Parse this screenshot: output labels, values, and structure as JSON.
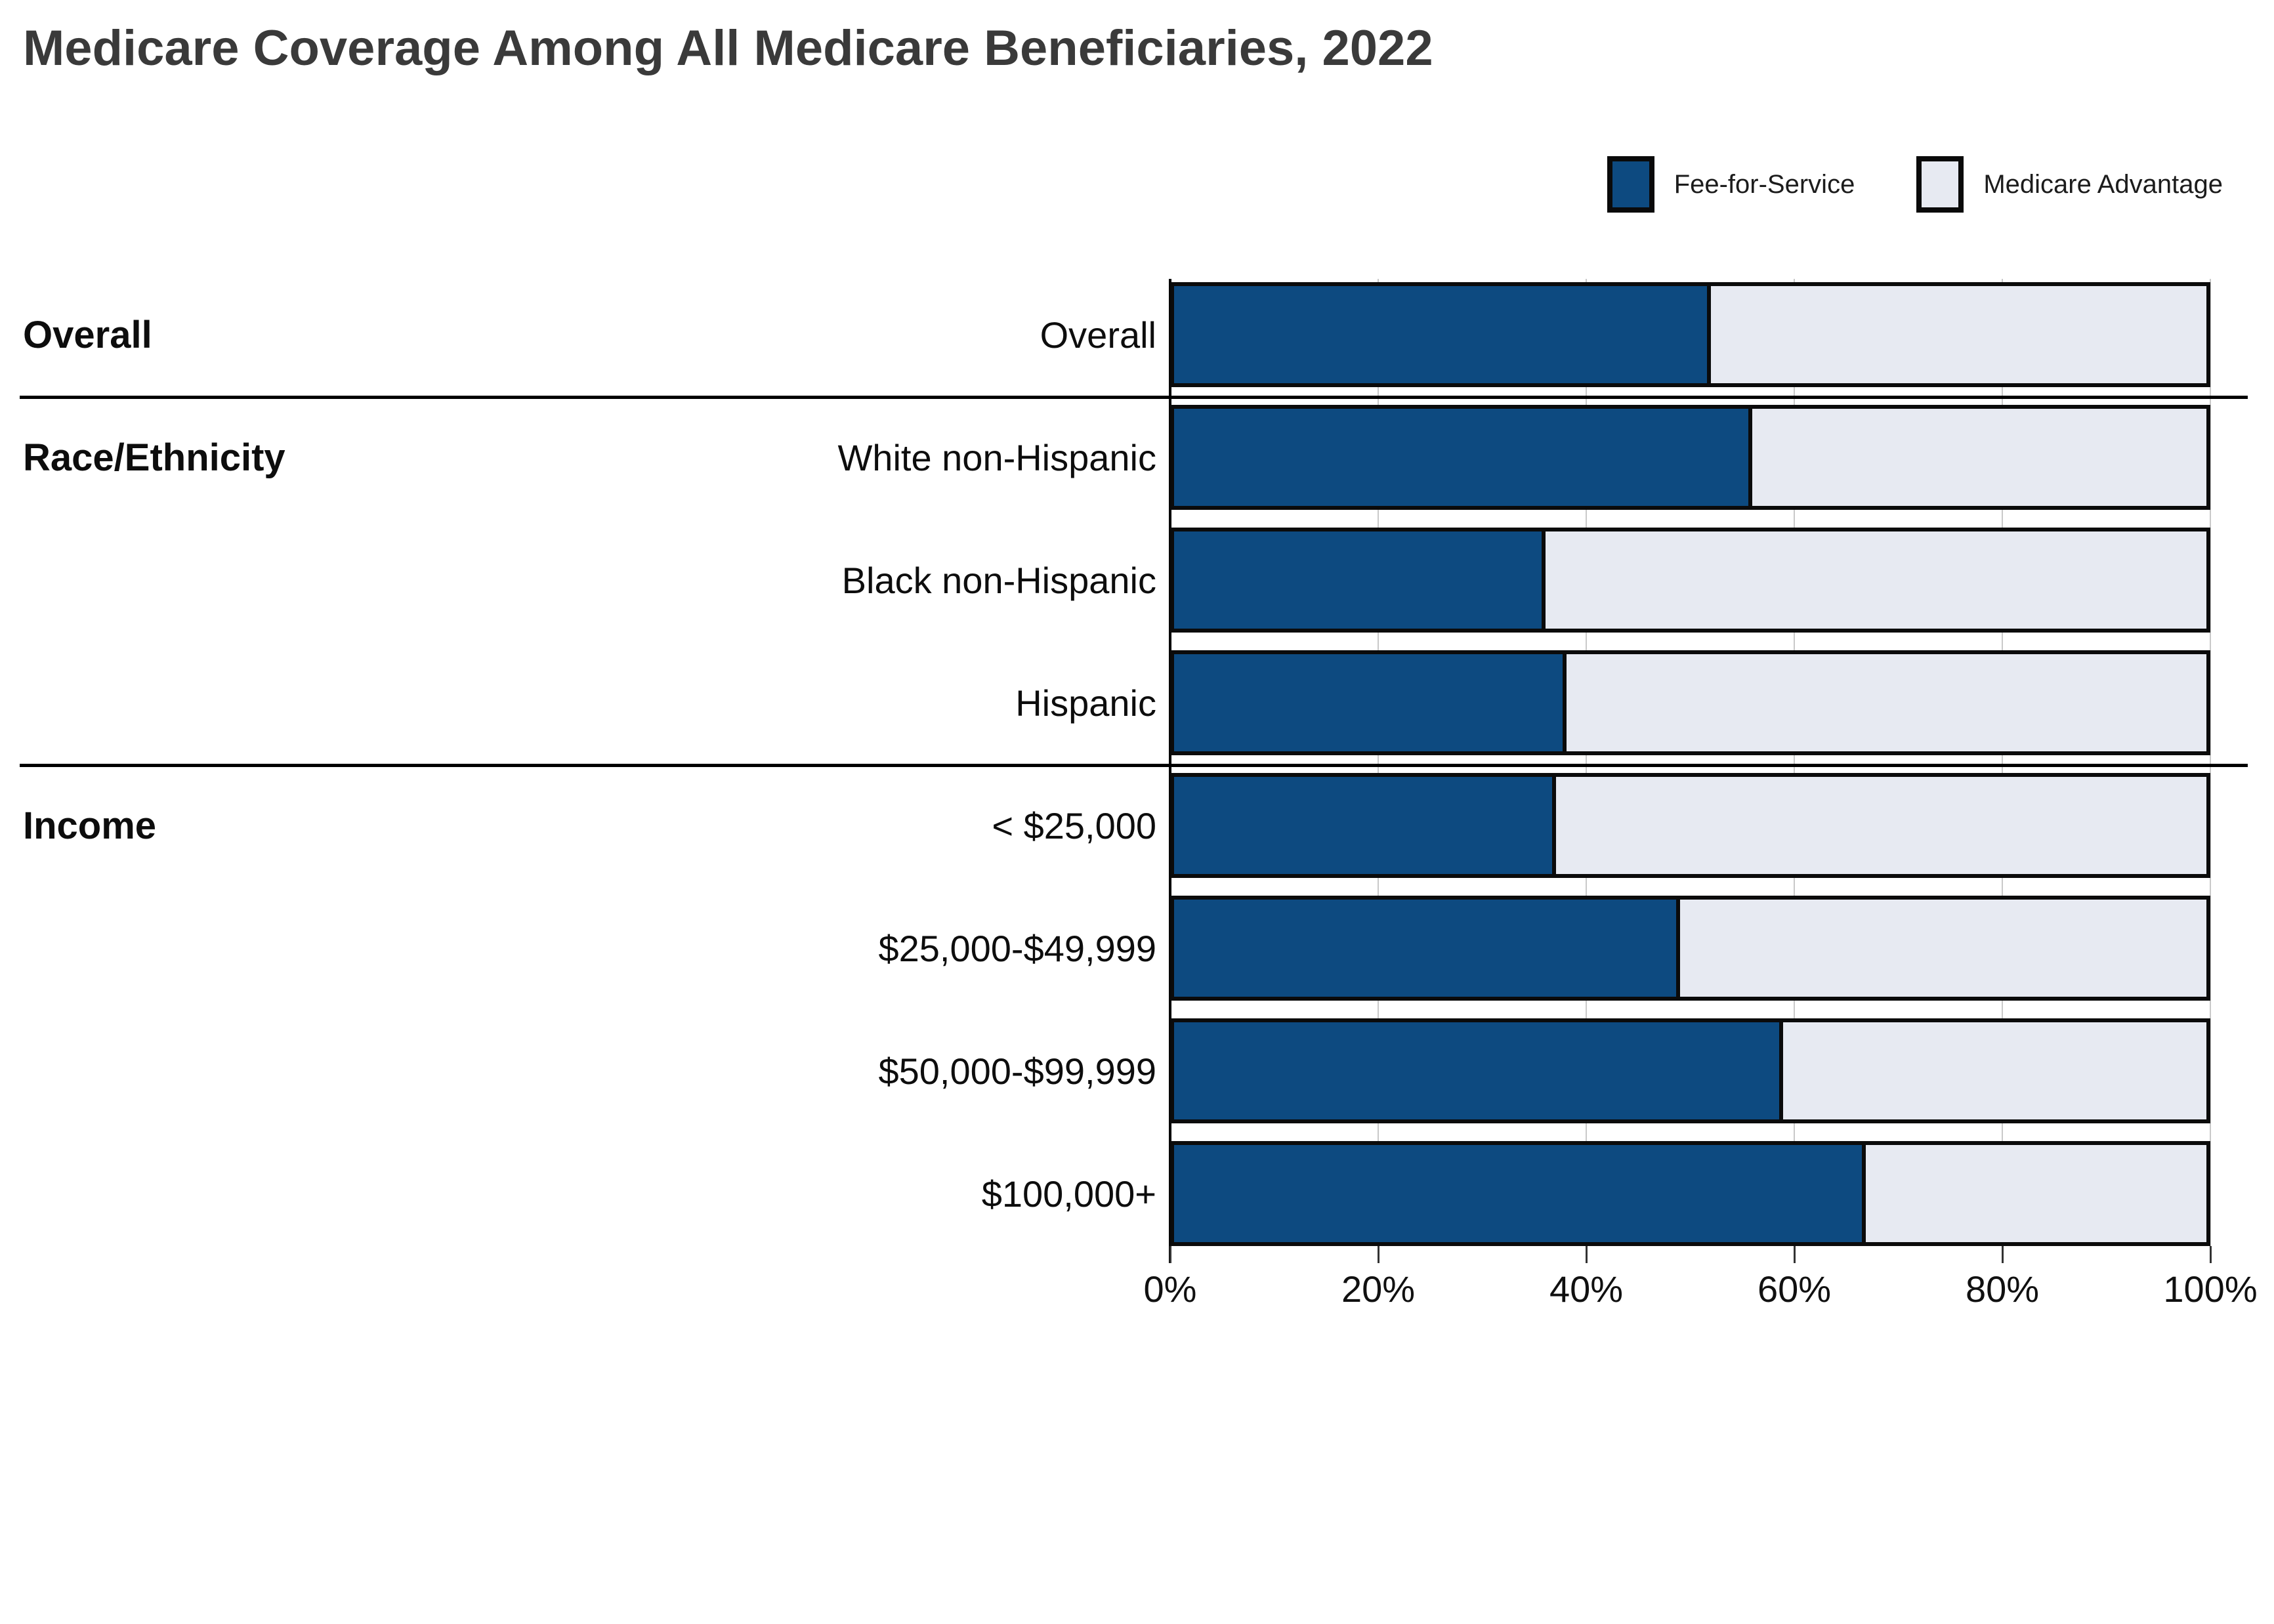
{
  "title": "Medicare Coverage Among All Medicare Beneficiaries, 2022",
  "legend": [
    {
      "label": "Fee-for-Service",
      "color": "#0d4a80"
    },
    {
      "label": "Medicare Advantage",
      "color": "#e7eaf2"
    }
  ],
  "colors": {
    "fee_for_service": "#0d4a80",
    "medicare_advantage": "#e7eaf2",
    "bar_border": "#0b0b0b",
    "gridline": "#c9c9c9",
    "title_text": "#3a3a3a"
  },
  "chart_data": {
    "type": "bar",
    "orientation": "horizontal",
    "stacked": true,
    "title": "Medicare Coverage Among All Medicare Beneficiaries, 2022",
    "categories": [
      "Overall",
      "White non-Hispanic",
      "Black non-Hispanic",
      "Hispanic",
      "< $25,000",
      "$25,000-$49,999",
      "$50,000-$99,999",
      "$100,000+"
    ],
    "groups": [
      {
        "label": "Overall",
        "row_indices": [
          0
        ]
      },
      {
        "label": "Race/Ethnicity",
        "row_indices": [
          1,
          2,
          3
        ]
      },
      {
        "label": "Income",
        "row_indices": [
          4,
          5,
          6,
          7
        ]
      }
    ],
    "series": [
      {
        "name": "Fee-for-Service",
        "color": "#0d4a80",
        "values": [
          52,
          56,
          36,
          38,
          37,
          49,
          59,
          67
        ]
      },
      {
        "name": "Medicare Advantage",
        "color": "#e7eaf2",
        "values": [
          48,
          44,
          64,
          62,
          63,
          51,
          41,
          33
        ]
      }
    ],
    "x_axis": {
      "range": [
        0,
        100
      ],
      "tick_values": [
        0,
        20,
        40,
        60,
        80,
        100
      ],
      "tick_labels": [
        "0%",
        "20%",
        "40%",
        "60%",
        "80%",
        "100%"
      ],
      "grid": true
    },
    "legend_position": "top-right"
  }
}
